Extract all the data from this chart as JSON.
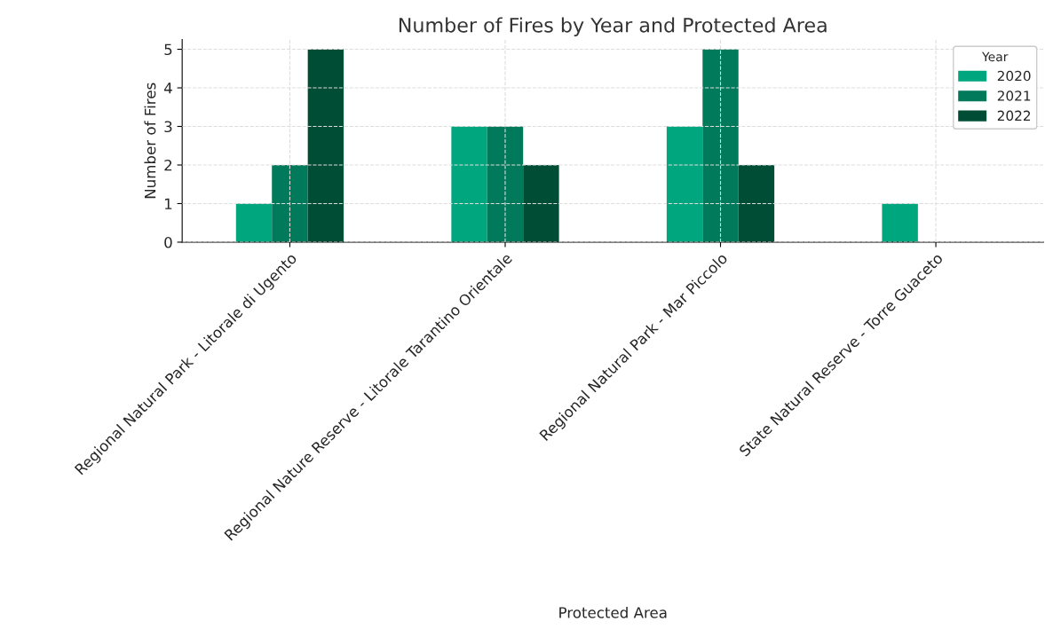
{
  "chart_data": {
    "type": "bar",
    "title": "Number of Fires by Year and Protected Area",
    "xlabel": "Protected Area",
    "ylabel": "Number of Fires",
    "legend_title": "Year",
    "categories": [
      "Regional Natural Park - Litorale di Ugento",
      "Regional Nature Reserve - Litorale Tarantino Orientale",
      "Regional Natural Park - Mar Piccolo",
      "State Natural Reserve - Torre Guaceto"
    ],
    "series": [
      {
        "name": "2020",
        "color": "#00a67e",
        "values": [
          1,
          3,
          3,
          1
        ]
      },
      {
        "name": "2021",
        "color": "#007a5a",
        "values": [
          2,
          3,
          5,
          null
        ]
      },
      {
        "name": "2022",
        "color": "#004d36",
        "values": [
          5,
          2,
          2,
          null
        ]
      }
    ],
    "ylim": [
      0,
      5.25
    ],
    "yticks": [
      0,
      1,
      2,
      3,
      4,
      5
    ],
    "grid": true,
    "legend": "top right"
  }
}
